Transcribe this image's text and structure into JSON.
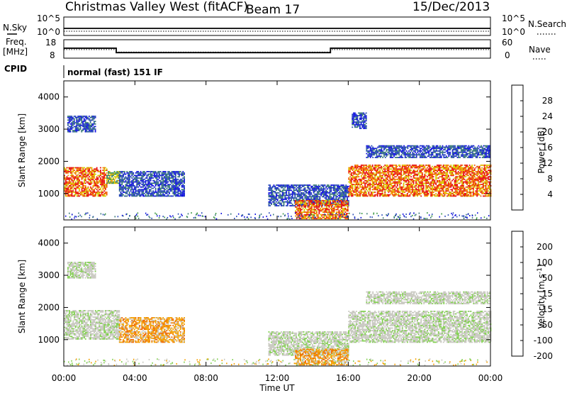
{
  "header": {
    "station": "Christmas Valley West (fitACF)",
    "beam": "Beam 17",
    "date": "15/Dec/2013"
  },
  "summary": {
    "nsky_label": "N.Sky",
    "nsky_ticks": [
      "10^5",
      "10^0"
    ],
    "nsearch_label": "N.Search",
    "nsearch_ticks": [
      "10^5",
      "10^0"
    ],
    "freq_label_1": "Freq.",
    "freq_label_2": "[MHz]",
    "freq_ticks": [
      "18",
      "8"
    ],
    "nave_label": "Nave",
    "nave_ticks": [
      "60",
      "0"
    ],
    "cpid_label": "CPID",
    "cpid_value": "normal (fast) 151 IF",
    "freq_mhz": [
      [
        0,
        13.4
      ],
      [
        2.95,
        13.4
      ],
      [
        2.95,
        11.0
      ],
      [
        15.0,
        11.0
      ],
      [
        15.0,
        13.4
      ],
      [
        24,
        13.4
      ]
    ],
    "nave": [
      [
        0,
        28
      ],
      [
        2.95,
        28
      ],
      [
        2.95,
        20
      ],
      [
        15.0,
        20
      ],
      [
        15.0,
        28
      ],
      [
        24,
        28
      ]
    ]
  },
  "chart_data": [
    {
      "type": "heatmap",
      "ylabel": "Slant Range [km]",
      "ylim": [
        180,
        4500
      ],
      "yticks": [
        "1000",
        "2000",
        "3000",
        "4000"
      ],
      "colorbar_label": "Power [dB]",
      "colorbar_ticks": [
        "4",
        "8",
        "12",
        "16",
        "20",
        "24",
        "28"
      ],
      "colorbar_range": [
        0,
        32
      ],
      "colors": [
        "#1414e0",
        "#2a4cb8",
        "#3a7a78",
        "#3d9a45",
        "#d4d000",
        "#f4a300",
        "#f05a00",
        "#e81010"
      ],
      "echo_regions": [
        {
          "t": [
            0.0,
            2.4
          ],
          "r": [
            900,
            1800
          ],
          "level": "strong"
        },
        {
          "t": [
            2.4,
            3.1
          ],
          "r": [
            1300,
            1700
          ],
          "level": "medium"
        },
        {
          "t": [
            3.1,
            6.8
          ],
          "r": [
            900,
            1700
          ],
          "level": "weak"
        },
        {
          "t": [
            0.2,
            1.8
          ],
          "r": [
            2900,
            3400
          ],
          "level": "weak"
        },
        {
          "t": [
            11.5,
            16.0
          ],
          "r": [
            600,
            1250
          ],
          "level": "weak"
        },
        {
          "t": [
            13.0,
            16.0
          ],
          "r": [
            200,
            800
          ],
          "level": "strong"
        },
        {
          "t": [
            16.0,
            24.0
          ],
          "r": [
            900,
            1900
          ],
          "level": "strong"
        },
        {
          "t": [
            17.0,
            24.0
          ],
          "r": [
            2100,
            2500
          ],
          "level": "weak"
        },
        {
          "t": [
            16.2,
            17.0
          ],
          "r": [
            3000,
            3500
          ],
          "level": "weak"
        }
      ]
    },
    {
      "type": "heatmap",
      "ylabel": "Slant Range [km]",
      "ylim": [
        180,
        4500
      ],
      "yticks": [
        "1000",
        "2000",
        "3000",
        "4000"
      ],
      "colorbar_label": "Velocity [m s^-1]",
      "colorbar_ticks": [
        "200",
        "100",
        "50",
        "15",
        "-15",
        "-50",
        "-100",
        "-200"
      ],
      "colorbar_range": [
        -250,
        250
      ],
      "colors": [
        "#1e3cb4",
        "#2d6e8c",
        "#3aa03c",
        "#82d050",
        "#c8c8c0",
        "#f4a000",
        "#f06a00",
        "#e01414"
      ],
      "echo_regions": [
        {
          "t": [
            0.0,
            3.1
          ],
          "r": [
            1000,
            1900
          ],
          "v": "ground"
        },
        {
          "t": [
            3.1,
            6.8
          ],
          "r": [
            900,
            1700
          ],
          "v": "-50"
        },
        {
          "t": [
            0.2,
            1.8
          ],
          "r": [
            2900,
            3400
          ],
          "v": "ground"
        },
        {
          "t": [
            11.5,
            16.0
          ],
          "r": [
            500,
            1250
          ],
          "v": "ground"
        },
        {
          "t": [
            13.0,
            16.0
          ],
          "r": [
            200,
            700
          ],
          "v": "-50"
        },
        {
          "t": [
            16.0,
            24.0
          ],
          "r": [
            900,
            1900
          ],
          "v": "ground"
        },
        {
          "t": [
            17.0,
            24.0
          ],
          "r": [
            2100,
            2500
          ],
          "v": "ground"
        }
      ]
    }
  ],
  "xaxis": {
    "label": "Time UT",
    "ticks": [
      "00:00",
      "04:00",
      "08:00",
      "12:00",
      "16:00",
      "20:00",
      "00:00"
    ]
  }
}
